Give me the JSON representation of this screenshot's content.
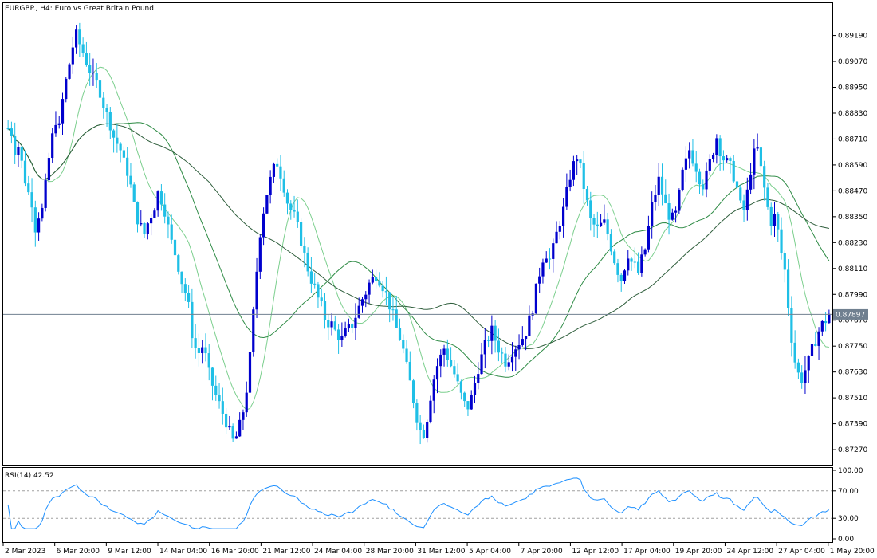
{
  "header": {
    "symbol_label": "EURGBP., H4:  Euro vs Great Britain Pound"
  },
  "rsi": {
    "label": "RSI(14) 42.52",
    "levels": [
      70,
      30
    ],
    "ticks": [
      "100.00",
      "70.00",
      "30.00",
      "0.00"
    ]
  },
  "price_axis": {
    "ticks": [
      "0.89190",
      "0.89070",
      "0.88950",
      "0.88830",
      "0.88710",
      "0.88590",
      "0.88470",
      "0.88350",
      "0.88230",
      "0.88110",
      "0.87990",
      "0.87870",
      "0.87750",
      "0.87630",
      "0.87510",
      "0.87390",
      "0.87270"
    ],
    "current_price_label": "0.87897"
  },
  "time_axis": {
    "labels": [
      "2 Mar 2023",
      "6 Mar 20:00",
      "9 Mar 12:00",
      "14 Mar 04:00",
      "16 Mar 20:00",
      "21 Mar 12:00",
      "24 Mar 04:00",
      "28 Mar 20:00",
      "31 Mar 12:00",
      "5 Apr 04:00",
      "7 Apr 20:00",
      "12 Apr 12:00",
      "17 Apr 04:00",
      "19 Apr 20:00",
      "24 Apr 12:00",
      "27 Apr 04:00",
      "1 May 20:00"
    ]
  },
  "colors": {
    "bull": "#0000cd",
    "bear": "#1fbfe6",
    "ma_fast": "#7ccf8e",
    "ma_mid": "#2e8b45",
    "ma_slow": "#2f5e3c",
    "rsi_line": "#1e90ff",
    "current_price_line": "#708090",
    "border": "#000000"
  },
  "chart_data": {
    "type": "candlestick",
    "symbol": "EURGBP.",
    "timeframe": "H4",
    "ylim": [
      0.872,
      0.8934
    ],
    "current_price": 0.87897,
    "close_path": [
      0.8876,
      0.8874,
      0.8866,
      0.8868,
      0.886,
      0.8852,
      0.8846,
      0.8842,
      0.883,
      0.8836,
      0.8838,
      0.8849,
      0.8862,
      0.8872,
      0.888,
      0.8876,
      0.8889,
      0.8898,
      0.8906,
      0.8914,
      0.8919,
      0.8915,
      0.8911,
      0.8907,
      0.8903,
      0.8899,
      0.8897,
      0.8893,
      0.8887,
      0.8882,
      0.8878,
      0.8872,
      0.8869,
      0.8866,
      0.886,
      0.8856,
      0.8849,
      0.884,
      0.8834,
      0.883,
      0.8827,
      0.8832,
      0.8836,
      0.884,
      0.8846,
      0.8843,
      0.8838,
      0.883,
      0.8823,
      0.8818,
      0.8812,
      0.8805,
      0.88,
      0.8793,
      0.8781,
      0.8774,
      0.8772,
      0.8775,
      0.877,
      0.8762,
      0.8757,
      0.8752,
      0.8748,
      0.8744,
      0.874,
      0.8735,
      0.8731,
      0.8733,
      0.8738,
      0.8745,
      0.8755,
      0.877,
      0.879,
      0.881,
      0.8828,
      0.8838,
      0.8846,
      0.8852,
      0.8857,
      0.886,
      0.8855,
      0.8849,
      0.8842,
      0.8838,
      0.8835,
      0.883,
      0.8824,
      0.8817,
      0.8811,
      0.8806,
      0.8802,
      0.8797,
      0.8793,
      0.8788,
      0.8786,
      0.8785,
      0.8782,
      0.878,
      0.8778,
      0.8781,
      0.8783,
      0.8785,
      0.8789,
      0.8793,
      0.8797,
      0.88,
      0.8804,
      0.8806,
      0.8808,
      0.8806,
      0.8803,
      0.8799,
      0.8794,
      0.8789,
      0.8783,
      0.8779,
      0.8773,
      0.8765,
      0.8758,
      0.875,
      0.8742,
      0.8736,
      0.8735,
      0.8742,
      0.8752,
      0.876,
      0.8766,
      0.877,
      0.8774,
      0.877,
      0.8766,
      0.8762,
      0.8757,
      0.8752,
      0.8748,
      0.8747,
      0.8751,
      0.8758,
      0.8765,
      0.877,
      0.8775,
      0.8779,
      0.8782,
      0.8778,
      0.8774,
      0.8771,
      0.8768,
      0.877,
      0.8773,
      0.8775,
      0.8777,
      0.8779,
      0.8782,
      0.8787,
      0.8793,
      0.8801,
      0.8809,
      0.8816,
      0.8818,
      0.8815,
      0.882,
      0.8827,
      0.8833,
      0.8838,
      0.8846,
      0.8854,
      0.8859,
      0.8863,
      0.8857,
      0.8849,
      0.8841,
      0.8833,
      0.8831,
      0.8829,
      0.8831,
      0.8832,
      0.8827,
      0.8821,
      0.8815,
      0.881,
      0.8806,
      0.8812,
      0.8818,
      0.8814,
      0.8812,
      0.8809,
      0.8815,
      0.882,
      0.883,
      0.884,
      0.8846,
      0.8852,
      0.8846,
      0.884,
      0.8836,
      0.8834,
      0.8836,
      0.8845,
      0.8855,
      0.886,
      0.8866,
      0.8862,
      0.8858,
      0.8853,
      0.885,
      0.8854,
      0.886,
      0.8866,
      0.8872,
      0.8866,
      0.8862,
      0.886,
      0.8858,
      0.8854,
      0.8848,
      0.884,
      0.8838,
      0.8846,
      0.8857,
      0.8864,
      0.8866,
      0.8857,
      0.8848,
      0.8839,
      0.8833,
      0.8835,
      0.8828,
      0.8818,
      0.881,
      0.8794,
      0.8779,
      0.8768,
      0.8762,
      0.876,
      0.8764,
      0.8768,
      0.8773,
      0.8778,
      0.8782,
      0.8785,
      0.8787,
      0.879
    ]
  }
}
